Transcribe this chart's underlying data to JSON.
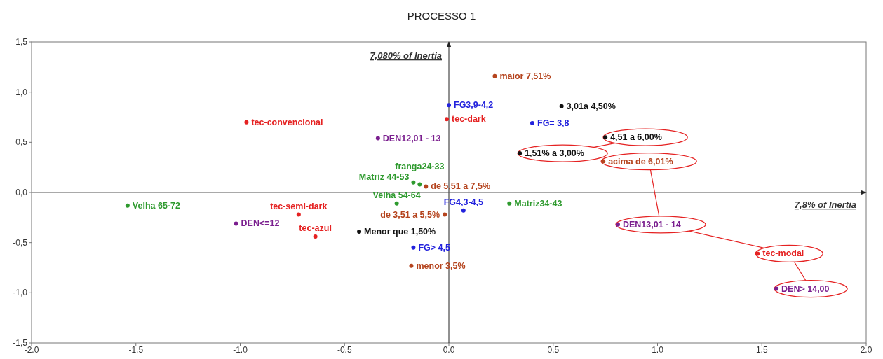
{
  "chart_data": {
    "type": "scatter",
    "title": "PROCESSO 1",
    "xlabel": "7,8% of Inertia",
    "ylabel": "7,080% of Inertia",
    "marker": "circle",
    "legend": false,
    "grid": false,
    "xlim": [
      -2,
      2
    ],
    "xticks": [
      {
        "value": -2,
        "label": "-2,0"
      },
      {
        "value": -1.5,
        "label": "-1,5"
      },
      {
        "value": -1,
        "label": "-1,0"
      },
      {
        "value": -0.5,
        "label": "-0,5"
      },
      {
        "value": 0,
        "label": "0,0"
      },
      {
        "value": 0.5,
        "label": "0,5"
      },
      {
        "value": 1,
        "label": "1,0"
      },
      {
        "value": 1.5,
        "label": "1,5"
      },
      {
        "value": 2,
        "label": "2,0"
      }
    ],
    "ylim": [
      -1.5,
      1.5
    ],
    "yticks": [
      {
        "value": -1.5,
        "label": "-1,5"
      },
      {
        "value": -1,
        "label": "-1,0"
      },
      {
        "value": -0.5,
        "label": "-0,5"
      },
      {
        "value": 0,
        "label": "0,0"
      },
      {
        "value": 0.5,
        "label": "0,5"
      },
      {
        "value": 1,
        "label": "1,0"
      },
      {
        "value": 1.5,
        "label": "1,5"
      }
    ],
    "ref_lines": [
      {
        "axis": "x",
        "value": 0,
        "color": "#222222"
      },
      {
        "axis": "y",
        "value": 0,
        "color": "#555555"
      }
    ],
    "series": [
      {
        "name": "maior 7,51%",
        "color": "#b5441e",
        "x": [
          0.22
        ],
        "values": [
          1.16
        ]
      },
      {
        "name": "FG3,9-4,2",
        "color": "#2222dd",
        "x": [
          0.0
        ],
        "values": [
          0.87
        ]
      },
      {
        "name": "tec-dark",
        "color": "#e52222",
        "x": [
          -0.01
        ],
        "values": [
          0.73
        ]
      },
      {
        "name": "3,01a 4,50%",
        "color": "#111111",
        "x": [
          0.54
        ],
        "values": [
          0.86
        ]
      },
      {
        "name": "FG= 3,8",
        "color": "#2222dd",
        "x": [
          0.4
        ],
        "values": [
          0.69
        ]
      },
      {
        "name": "tec-convencional",
        "color": "#e52222",
        "x": [
          -0.97
        ],
        "values": [
          0.7
        ]
      },
      {
        "name": "DEN12,01 - 13",
        "color": "#7b1f8f",
        "x": [
          -0.34
        ],
        "values": [
          0.54
        ]
      },
      {
        "name": "4,51 a 6,00%",
        "color": "#111111",
        "x": [
          0.75
        ],
        "values": [
          0.55
        ]
      },
      {
        "name": "1,51% a 3,00%",
        "color": "#111111",
        "x": [
          0.34
        ],
        "values": [
          0.39
        ]
      },
      {
        "name": "acima de 6,01%",
        "color": "#b5441e",
        "x": [
          0.74
        ],
        "values": [
          0.31
        ]
      },
      {
        "name": "franga24-33",
        "color": "#2e9a2e",
        "x": [
          -0.14
        ],
        "values": [
          0.08
        ]
      },
      {
        "name": "Matriz 44-53",
        "color": "#2e9a2e",
        "x": [
          -0.17
        ],
        "values": [
          0.1
        ]
      },
      {
        "name": "de 5,51 a 7,5%",
        "color": "#b5441e",
        "x": [
          -0.11
        ],
        "values": [
          0.06
        ]
      },
      {
        "name": "Velha 65-72",
        "color": "#2e9a2e",
        "x": [
          -1.54
        ],
        "values": [
          -0.13
        ]
      },
      {
        "name": "Velha 54-64",
        "color": "#2e9a2e",
        "x": [
          -0.25
        ],
        "values": [
          -0.11
        ]
      },
      {
        "name": "Matriz34-43",
        "color": "#2e9a2e",
        "x": [
          0.29
        ],
        "values": [
          -0.11
        ]
      },
      {
        "name": "FG4,3-4,5",
        "color": "#2222dd",
        "x": [
          0.07
        ],
        "values": [
          -0.18
        ]
      },
      {
        "name": "de 3,51 a 5,5%",
        "color": "#b5441e",
        "x": [
          -0.02
        ],
        "values": [
          -0.22
        ]
      },
      {
        "name": "tec-semi-dark",
        "color": "#e52222",
        "x": [
          -0.72
        ],
        "values": [
          -0.22
        ]
      },
      {
        "name": "DEN<=12",
        "color": "#7b1f8f",
        "x": [
          -1.02
        ],
        "values": [
          -0.31
        ]
      },
      {
        "name": "tec-azul",
        "color": "#e52222",
        "x": [
          -0.64
        ],
        "values": [
          -0.44
        ]
      },
      {
        "name": "Menor que 1,50%",
        "color": "#111111",
        "x": [
          -0.43
        ],
        "values": [
          -0.39
        ]
      },
      {
        "name": "FG> 4,5",
        "color": "#2222dd",
        "x": [
          -0.17
        ],
        "values": [
          -0.55
        ]
      },
      {
        "name": "menor 3,5%",
        "color": "#b5441e",
        "x": [
          -0.18
        ],
        "values": [
          -0.73
        ]
      },
      {
        "name": "DEN13,01 - 14",
        "color": "#7b1f8f",
        "x": [
          0.81
        ],
        "values": [
          -0.32
        ]
      },
      {
        "name": "tec-modal",
        "color": "#e52222",
        "x": [
          1.48
        ],
        "values": [
          -0.61
        ]
      },
      {
        "name": "DEN> 14,00",
        "color": "#7b1f8f",
        "x": [
          1.57
        ],
        "values": [
          -0.96
        ]
      }
    ]
  }
}
